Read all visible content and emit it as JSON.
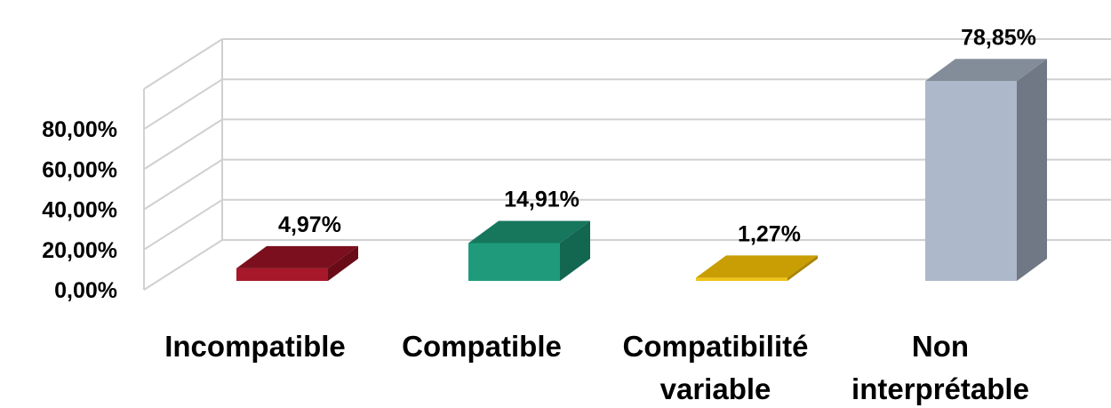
{
  "chart_data": {
    "type": "bar",
    "categories": [
      [
        "Incompatible"
      ],
      [
        "Compatible"
      ],
      [
        "Compatibilité",
        "variable"
      ],
      [
        "Non",
        "interprétable"
      ]
    ],
    "values": [
      4.97,
      14.91,
      1.27,
      78.85
    ],
    "value_labels": [
      "4,97%",
      "14,91%",
      "1,27%",
      "78,85%"
    ],
    "y_ticks": [
      "0,00%",
      "20,00%",
      "40,00%",
      "60,00%",
      "80,00%"
    ],
    "ylim": [
      0,
      100
    ],
    "grid": true,
    "legend": "none",
    "style": "3d-column",
    "colors": [
      {
        "front": "#a6182a",
        "top": "#7b0f1d",
        "side": "#6a0c17"
      },
      {
        "front": "#1f9b7b",
        "top": "#16775d",
        "side": "#136650"
      },
      {
        "front": "#f0c418",
        "top": "#c89e04",
        "side": "#a88403"
      },
      {
        "front": "#adb8ca",
        "top": "#838d9a",
        "side": "#6f7884"
      }
    ]
  }
}
